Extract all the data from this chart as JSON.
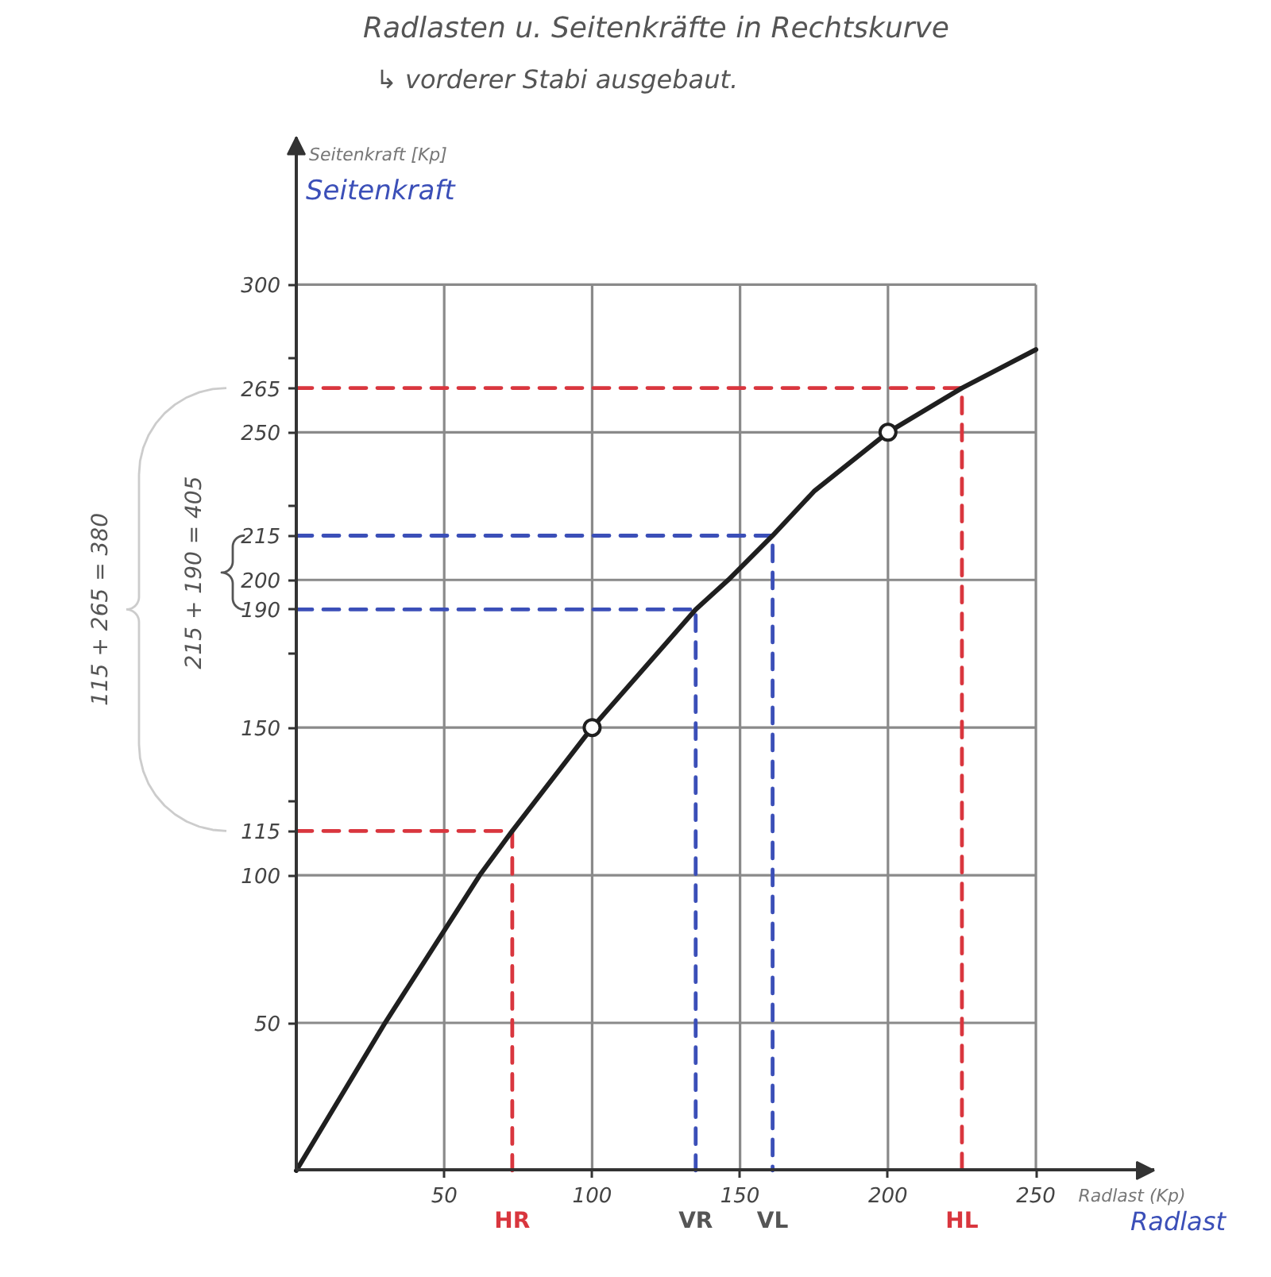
{
  "chart_data": {
    "type": "line",
    "title": "Radlasten u. Seitenkräfte in Rechtskurve",
    "subtitle": "↳ vorderer Stabi ausgebaut.",
    "xlabel": "Radlast (Kp)",
    "ylabel": "Seitenkraft [Kp]",
    "xlim": [
      0,
      290
    ],
    "ylim": [
      0,
      350
    ],
    "xticks": [
      50,
      100,
      150,
      200,
      250
    ],
    "yticks": [
      50,
      100,
      115,
      {
        "value": 125,
        "label": null
      },
      150,
      {
        "value": 175,
        "label": null
      },
      190,
      200,
      215,
      {
        "value": 225,
        "label": null
      },
      250,
      265,
      {
        "value": 275,
        "label": null
      },
      300
    ],
    "grid": true,
    "series": [
      {
        "line_style": "dashed",
        "color": "#d9363e",
        "x": [
          0,
          73,
          73
        ],
        "values": [
          115,
          115,
          0
        ]
      },
      {
        "line_style": "dashed",
        "color": "#d9363e",
        "x": [
          0,
          225,
          225
        ],
        "values": [
          265,
          265,
          0
        ]
      },
      {
        "line_style": "dashed",
        "color": "#3b4fb8",
        "x": [
          0,
          135,
          135
        ],
        "values": [
          190,
          190,
          0
        ]
      },
      {
        "line_style": "dashed",
        "color": "#3b4fb8",
        "x": [
          0,
          161,
          161
        ],
        "values": [
          215,
          215,
          0
        ]
      },
      {
        "line_style": "solid",
        "color": "#1f1f1f",
        "x": [
          0,
          30,
          62,
          73,
          100,
          135,
          146,
          161,
          175,
          200,
          225,
          250
        ],
        "values": [
          0,
          50,
          100,
          115,
          150,
          190,
          200,
          215,
          230,
          250,
          265,
          278
        ]
      },
      {
        "type": "scatter",
        "marker": "circle",
        "color": "#1f1f1f",
        "x": [
          100,
          200
        ],
        "values": [
          150,
          250
        ]
      }
    ],
    "annotations": [
      "Seitenkraft",
      "Radlast",
      {
        "text": "HR",
        "x": 73,
        "y": 0
      },
      {
        "text": "VR",
        "x": 135,
        "y": 0
      },
      {
        "text": "VL",
        "x": 161,
        "y": 0
      },
      {
        "text": "HL",
        "x": 225,
        "y": 0
      },
      "115 + 265 = 380",
      "215 + 190 = 405"
    ]
  }
}
